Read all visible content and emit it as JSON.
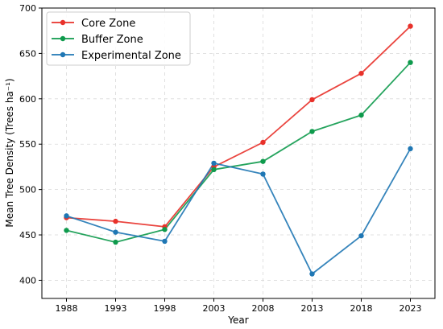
{
  "chart_data": {
    "type": "line",
    "title": "",
    "xlabel": "Year",
    "ylabel": "Mean Tree Density (Trees ha⁻¹)",
    "x": [
      1988,
      1993,
      1998,
      2003,
      2008,
      2013,
      2018,
      2023
    ],
    "xlim": [
      1985.5,
      2025.5
    ],
    "ylim": [
      380,
      700
    ],
    "yticks": [
      400,
      450,
      500,
      550,
      600,
      650,
      700
    ],
    "grid": true,
    "legend_position": "top-left",
    "series": [
      {
        "name": "Core Zone",
        "color": "#e8312a",
        "values": [
          469,
          465,
          459,
          525,
          552,
          599,
          628,
          680
        ]
      },
      {
        "name": "Buffer Zone",
        "color": "#0e9a4c",
        "values": [
          455,
          442,
          456,
          522,
          531,
          564,
          582,
          640
        ]
      },
      {
        "name": "Experimental Zone",
        "color": "#1f77b4",
        "values": [
          471,
          453,
          443,
          529,
          517,
          407,
          449,
          545
        ]
      }
    ]
  }
}
